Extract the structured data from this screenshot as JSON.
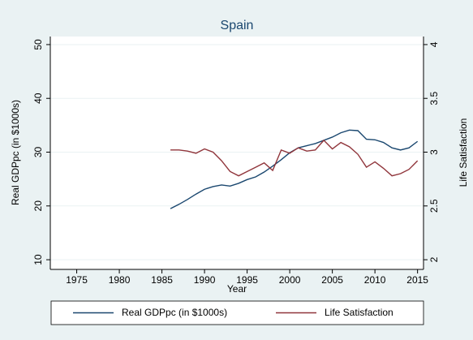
{
  "chart_data": {
    "type": "line",
    "title": "Spain",
    "xlabel": "Year",
    "ylabel": "Real GDPpc (in $1000s)",
    "y2label": "Life Satisfaction",
    "x": [
      1986,
      1987,
      1988,
      1989,
      1990,
      1991,
      1992,
      1993,
      1994,
      1995,
      1996,
      1997,
      1998,
      1999,
      2000,
      2001,
      2002,
      2003,
      2004,
      2005,
      2006,
      2007,
      2008,
      2009,
      2010,
      2011,
      2012,
      2013,
      2014,
      2015
    ],
    "series": [
      {
        "name": "Real GDPpc (in $1000s)",
        "color": "#1a476f",
        "axis": "y",
        "values": [
          19.5,
          20.3,
          21.2,
          22.2,
          23.1,
          23.6,
          23.9,
          23.7,
          24.2,
          24.9,
          25.4,
          26.3,
          27.4,
          28.6,
          29.9,
          30.8,
          31.2,
          31.6,
          32.2,
          32.8,
          33.6,
          34.1,
          34.0,
          32.4,
          32.3,
          31.8,
          30.8,
          30.4,
          30.8,
          32.0
        ]
      },
      {
        "name": "Life Satisfaction",
        "color": "#90353b",
        "axis": "y2",
        "values": [
          3.02,
          3.02,
          3.01,
          2.99,
          3.03,
          3.0,
          2.92,
          2.82,
          2.78,
          2.82,
          2.86,
          2.9,
          2.83,
          3.02,
          2.99,
          3.04,
          3.01,
          3.02,
          3.11,
          3.03,
          3.09,
          3.05,
          2.98,
          2.86,
          2.91,
          2.85,
          2.78,
          2.8,
          2.84,
          2.92
        ]
      }
    ],
    "xlim": [
      1971.9,
      2015.7
    ],
    "xticks": [
      1975,
      1980,
      1985,
      1990,
      1995,
      2000,
      2005,
      2010,
      2015
    ],
    "ylim": [
      8.2,
      51.5
    ],
    "yticks": [
      10,
      20,
      30,
      40,
      50
    ],
    "y2lim": [
      1.91,
      4.075
    ],
    "y2ticks": [
      2,
      2.5,
      3,
      3.5,
      4
    ],
    "grid": true,
    "legend": "bottom"
  }
}
